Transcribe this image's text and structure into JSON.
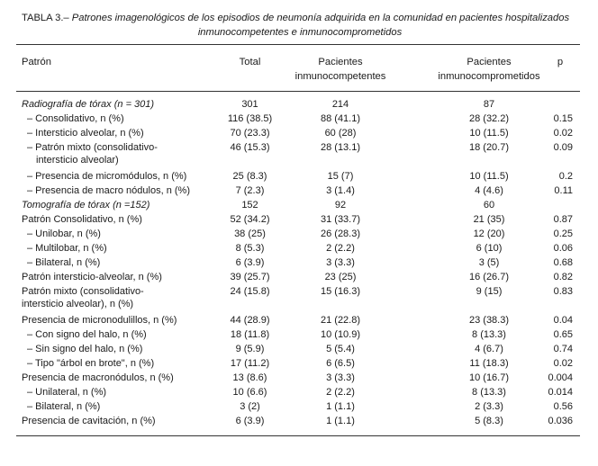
{
  "caption": {
    "label": "TABLA 3.–",
    "line1": "Patrones imagenológicos de los episodios de neumonía adquirida en la comunidad en pacientes hospitalizados",
    "line2": "inmunocompetentes e inmunocomprometidos"
  },
  "header": {
    "patron": "Patrón",
    "total": "Total",
    "inmunocompetentes_1": "Pacientes",
    "inmunocompetentes_2": "inmunocompetentes",
    "inmunocomprometidos_1": "Pacientes",
    "inmunocomprometidos_2": "inmunocomprometidos",
    "p": "p"
  },
  "rows": [
    {
      "label": "Radiografía de tórax (n = 301)",
      "total": "301",
      "inmunocompetentes": "214",
      "inmunocomprometidos": "87",
      "p": ""
    },
    {
      "label": "– Consolidativo, n (%)",
      "total": "116 (38.5)",
      "inmunocompetentes": "88 (41.1)",
      "inmunocomprometidos": "28 (32.2)",
      "p": "0.15"
    },
    {
      "label": "– Intersticio alveolar, n (%)",
      "total": "70 (23.3)",
      "inmunocompetentes": "60 (28)",
      "inmunocomprometidos": "10 (11.5)",
      "p": "0.02"
    },
    {
      "label": "– Patrón mixto (consolidativo-",
      "label2": "intersticio alveolar)",
      "total": "46 (15.3)",
      "inmunocompetentes": "28 (13.1)",
      "inmunocomprometidos": "18 (20.7)",
      "p": "0.09"
    },
    {
      "label": "– Presencia de micromódulos, n (%)",
      "total": "25 (8.3)",
      "inmunocompetentes": "15 (7)",
      "inmunocomprometidos": "10 (11.5)",
      "p": "0.2"
    },
    {
      "label": "– Presencia de macro nódulos, n (%)",
      "total": "7 (2.3)",
      "inmunocompetentes": "3 (1.4)",
      "inmunocomprometidos": "4 (4.6)",
      "p": "0.11"
    },
    {
      "label": "Tomografía de tórax (n =152)",
      "total": "152",
      "inmunocompetentes": "92",
      "inmunocomprometidos": "60",
      "p": ""
    },
    {
      "label": "Patrón Consolidativo, n (%)",
      "total": "52 (34.2)",
      "inmunocompetentes": "31 (33.7)",
      "inmunocomprometidos": "21 (35)",
      "p": "0.87"
    },
    {
      "label": "– Unilobar, n (%)",
      "total": "38 (25)",
      "inmunocompetentes": "26 (28.3)",
      "inmunocomprometidos": "12 (20)",
      "p": "0.25"
    },
    {
      "label": "– Multilobar, n (%)",
      "total": "8 (5.3)",
      "inmunocompetentes": "2 (2.2)",
      "inmunocomprometidos": "6 (10)",
      "p": "0.06"
    },
    {
      "label": "– Bilateral, n (%)",
      "total": "6 (3.9)",
      "inmunocompetentes": "3 (3.3)",
      "inmunocomprometidos": "3 (5)",
      "p": "0.68"
    },
    {
      "label": "Patrón intersticio-alveolar, n (%)",
      "total": "39 (25.7)",
      "inmunocompetentes": "23 (25)",
      "inmunocomprometidos": "16 (26.7)",
      "p": "0.82"
    },
    {
      "label": "Patrón mixto (consolidativo-",
      "label2": "intersticio alveolar), n (%)",
      "total": "24 (15.8)",
      "inmunocompetentes": "15 (16.3)",
      "inmunocomprometidos": "9 (15)",
      "p": "0.83"
    },
    {
      "label": "Presencia de micronodulillos, n (%)",
      "total": "44 (28.9)",
      "inmunocompetentes": "21 (22.8)",
      "inmunocomprometidos": "23 (38.3)",
      "p": "0.04"
    },
    {
      "label": "– Con signo del halo, n (%)",
      "total": "18 (11.8)",
      "inmunocompetentes": "10 (10.9)",
      "inmunocomprometidos": "8 (13.3)",
      "p": "0.65"
    },
    {
      "label": "– Sin signo del halo, n (%)",
      "total": "9 (5.9)",
      "inmunocompetentes": "5 (5.4)",
      "inmunocomprometidos": "4 (6.7)",
      "p": "0.74"
    },
    {
      "label": "– Tipo \"árbol en brote\", n (%)",
      "total": "17 (11.2)",
      "inmunocompetentes": "6 (6.5)",
      "inmunocomprometidos": "11 (18.3)",
      "p": "0.02"
    },
    {
      "label": "Presencia de macronódulos, n (%)",
      "total": "13 (8.6)",
      "inmunocompetentes": "3 (3.3)",
      "inmunocomprometidos": "10 (16.7)",
      "p": "0.004"
    },
    {
      "label": "– Unilateral, n (%)",
      "total": "10 (6.6)",
      "inmunocompetentes": "2 (2.2)",
      "inmunocomprometidos": "8 (13.3)",
      "p": "0.014"
    },
    {
      "label": "– Bilateral, n (%)",
      "total": "3 (2)",
      "inmunocompetentes": "1 (1.1)",
      "inmunocomprometidos": "2 (3.3)",
      "p": "0.56"
    },
    {
      "label": "Presencia de cavitación, n (%)",
      "total": "6 (3.9)",
      "inmunocompetentes": "1 (1.1)",
      "inmunocomprometidos": "5 (8.3)",
      "p": "0.036"
    }
  ]
}
